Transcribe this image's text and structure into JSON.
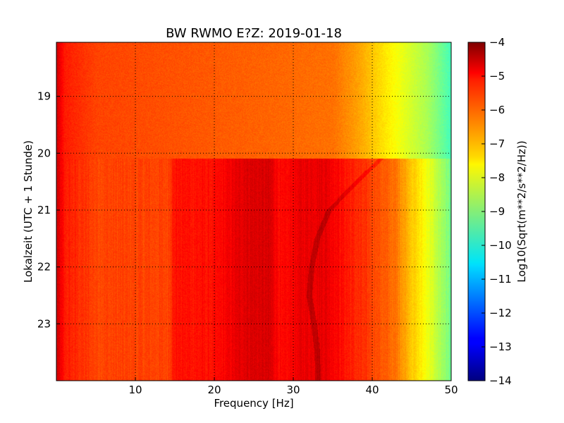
{
  "chart_data": {
    "type": "heatmap",
    "title": "BW RWMO E?Z: 2019-01-18",
    "xlabel": "Frequency [Hz]",
    "ylabel": "Lokalzeit (UTC + 1 Stunde)",
    "xlim": [
      0,
      50
    ],
    "ylim": [
      24,
      18.05
    ],
    "x_ticks": [
      10,
      20,
      30,
      40,
      50
    ],
    "y_ticks": [
      19,
      20,
      21,
      22,
      23
    ],
    "grid": true,
    "colorbar": {
      "label": "Log10(Sqrt(m**2/s**2/Hz))",
      "range": [
        -14,
        -4
      ],
      "ticks": [
        -4,
        -5,
        -6,
        -7,
        -8,
        -9,
        -10,
        -11,
        -12,
        -13,
        -14
      ],
      "colormap": "jet"
    },
    "regime_change_time": 20.1,
    "before_change": {
      "level_by_frequency": [
        [
          0,
          -4.8
        ],
        [
          1,
          -5.5
        ],
        [
          5,
          -5.9
        ],
        [
          25,
          -6.2
        ],
        [
          35,
          -6.35
        ],
        [
          38,
          -6.8
        ],
        [
          41,
          -7.4
        ],
        [
          44,
          -8.0
        ],
        [
          47,
          -8.6
        ],
        [
          50,
          -9.6
        ]
      ]
    },
    "after_change": {
      "level_by_frequency": [
        [
          0,
          -4.8
        ],
        [
          1,
          -5.5
        ],
        [
          5,
          -5.9
        ],
        [
          14,
          -5.9
        ],
        [
          15,
          -5.4
        ],
        [
          20,
          -5.4
        ],
        [
          24,
          -4.9
        ],
        [
          27,
          -4.9
        ],
        [
          28.5,
          -5.4
        ],
        [
          31,
          -5.05
        ],
        [
          34,
          -5.0
        ],
        [
          37,
          -5.5
        ],
        [
          40,
          -5.9
        ],
        [
          43,
          -6.4
        ],
        [
          45,
          -7.2
        ],
        [
          47,
          -7.9
        ],
        [
          50,
          -9.2
        ]
      ],
      "tonal_line": [
        [
          20.1,
          41.0
        ],
        [
          20.5,
          38.0
        ],
        [
          21.0,
          34.5
        ],
        [
          21.5,
          33.0
        ],
        [
          22.0,
          32.3
        ],
        [
          22.5,
          32.0
        ],
        [
          23.0,
          32.6
        ],
        [
          23.5,
          33.0
        ],
        [
          24.0,
          33.1
        ]
      ]
    }
  }
}
